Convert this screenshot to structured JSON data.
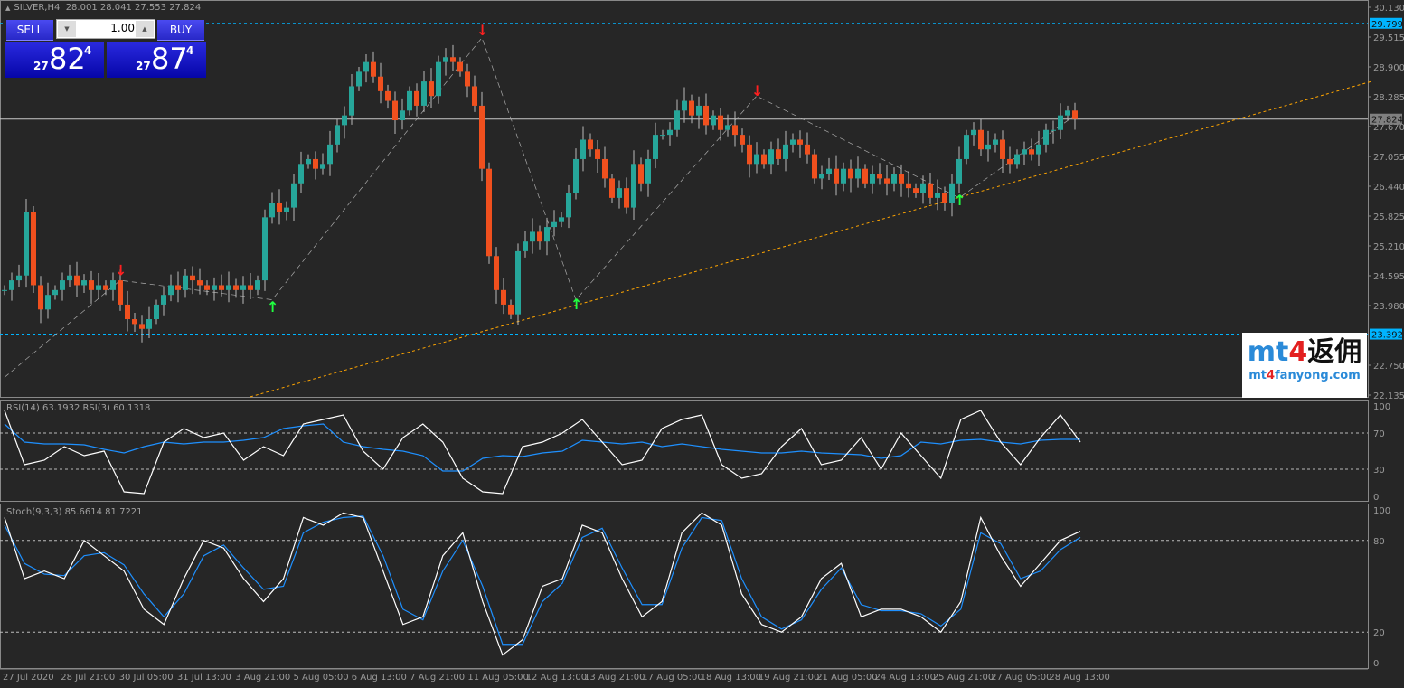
{
  "header": {
    "symbol": "SILVER,H4",
    "ohlc": "28.001 28.041 27.553 27.824"
  },
  "trade_panel": {
    "sell_label": "SELL",
    "buy_label": "BUY",
    "lot": "1.00",
    "sell_prefix": "27",
    "sell_big": "82",
    "sell_sup": "4",
    "buy_prefix": "27",
    "buy_big": "87",
    "buy_sup": "4"
  },
  "price_axis": {
    "ticks": [
      "30.130",
      "29.515",
      "28.900",
      "28.285",
      "27.670",
      "27.055",
      "26.440",
      "25.825",
      "25.210",
      "24.595",
      "23.980",
      "22.750",
      "22.135"
    ],
    "tick_values": [
      30.13,
      29.515,
      28.9,
      28.285,
      27.67,
      27.055,
      26.44,
      25.825,
      25.21,
      24.595,
      23.98,
      22.75,
      22.135
    ],
    "range": [
      22.135,
      30.13
    ],
    "labels": [
      {
        "text": "29.799",
        "value": 29.799,
        "color": "#00b4ff"
      },
      {
        "text": "27.824",
        "value": 27.824,
        "color": "#808080"
      },
      {
        "text": "23.392",
        "value": 23.392,
        "color": "#00b4ff"
      }
    ]
  },
  "time_axis": [
    "27 Jul 2020",
    "28 Jul 21:00",
    "30 Jul 05:00",
    "31 Jul 13:00",
    "3 Aug 21:00",
    "5 Aug 05:00",
    "6 Aug 13:00",
    "7 Aug 21:00",
    "11 Aug 05:00",
    "12 Aug 13:00",
    "13 Aug 21:00",
    "17 Aug 05:00",
    "18 Aug 13:00",
    "19 Aug 21:00",
    "21 Aug 05:00",
    "24 Aug 13:00",
    "25 Aug 21:00",
    "27 Aug 05:00",
    "28 Aug 13:00"
  ],
  "colors": {
    "bull": "#26a69a",
    "bear": "#f0501e",
    "bg": "#262626",
    "grid": "#808080",
    "hline": "#00b4ff",
    "trend": "#ffa500"
  },
  "chart_data": {
    "type": "candlestick",
    "closes": [
      24.3,
      24.5,
      24.6,
      25.9,
      24.4,
      23.9,
      24.2,
      24.3,
      24.5,
      24.6,
      24.4,
      24.5,
      24.3,
      24.4,
      24.3,
      24.5,
      24.0,
      23.7,
      23.6,
      23.5,
      23.7,
      24.0,
      24.2,
      24.4,
      24.3,
      24.6,
      24.5,
      24.4,
      24.3,
      24.4,
      24.3,
      24.4,
      24.3,
      24.4,
      24.3,
      24.5,
      25.8,
      26.1,
      25.9,
      26.0,
      26.5,
      26.9,
      27.0,
      26.8,
      26.9,
      27.3,
      27.7,
      27.9,
      28.5,
      28.8,
      29.0,
      28.7,
      28.4,
      28.2,
      27.8,
      28.0,
      28.4,
      28.1,
      28.6,
      28.3,
      29.0,
      29.1,
      29.0,
      28.8,
      28.5,
      28.1,
      26.8,
      25.0,
      24.3,
      24.0,
      23.8,
      25.1,
      25.3,
      25.5,
      25.3,
      25.6,
      25.7,
      25.8,
      26.3,
      27.0,
      27.4,
      27.2,
      27.0,
      26.6,
      26.2,
      26.4,
      26.0,
      26.9,
      26.5,
      27.0,
      27.5,
      27.5,
      27.6,
      28.0,
      28.2,
      27.9,
      28.1,
      27.7,
      27.9,
      27.6,
      27.7,
      27.5,
      27.3,
      26.9,
      27.1,
      26.9,
      27.2,
      27.0,
      27.3,
      27.4,
      27.3,
      27.1,
      26.6,
      26.7,
      26.8,
      26.5,
      26.8,
      26.6,
      26.8,
      26.5,
      26.7,
      26.6,
      26.5,
      26.7,
      26.5,
      26.4,
      26.3,
      26.5,
      26.2,
      26.3,
      26.1,
      26.5,
      27.0,
      27.5,
      27.6,
      27.2,
      27.3,
      27.4,
      27.0,
      26.9,
      27.1,
      27.2,
      27.1,
      27.3,
      27.6,
      27.6,
      27.9,
      28.0,
      27.824
    ],
    "signals": [
      {
        "type": "sell",
        "candle": 16,
        "price": 24.6
      },
      {
        "type": "buy",
        "candle": 37,
        "price": 24.0
      },
      {
        "type": "sell",
        "candle": 66,
        "price": 29.55
      },
      {
        "type": "buy",
        "candle": 79,
        "price": 24.05
      },
      {
        "type": "sell",
        "candle": 104,
        "price": 28.3
      },
      {
        "type": "buy",
        "candle": 132,
        "price": 26.2
      }
    ],
    "zigzag": [
      [
        0,
        22.5
      ],
      [
        16,
        24.5
      ],
      [
        37,
        24.1
      ],
      [
        66,
        29.5
      ],
      [
        79,
        24.1
      ],
      [
        104,
        28.3
      ],
      [
        132,
        26.2
      ],
      [
        148,
        27.9
      ]
    ],
    "trendline": {
      "from": [
        34,
        22.1
      ],
      "to": [
        189,
        28.6
      ]
    },
    "rsi": {
      "label": "RSI(14) 63.1932  RSI(3) 60.1318",
      "levels": [
        70,
        30
      ],
      "ticks": [
        "100",
        "70",
        "30",
        "0"
      ],
      "rsi3": [
        95,
        35,
        40,
        55,
        45,
        50,
        5,
        3,
        60,
        75,
        65,
        70,
        40,
        55,
        45,
        80,
        85,
        90,
        50,
        30,
        65,
        80,
        60,
        20,
        5,
        3,
        55,
        60,
        70,
        85,
        60,
        35,
        40,
        75,
        85,
        90,
        35,
        20,
        25,
        55,
        75,
        35,
        40,
        65,
        30,
        70,
        45,
        20,
        85,
        95,
        60,
        35,
        65,
        90,
        60
      ],
      "rsi14": [
        80,
        60,
        58,
        58,
        57,
        52,
        48,
        55,
        60,
        58,
        60,
        60,
        62,
        65,
        75,
        78,
        80,
        60,
        55,
        52,
        50,
        45,
        28,
        28,
        42,
        45,
        44,
        48,
        50,
        62,
        60,
        58,
        60,
        55,
        58,
        55,
        52,
        50,
        48,
        48,
        50,
        48,
        47,
        46,
        42,
        45,
        60,
        58,
        62,
        63,
        60,
        58,
        62,
        63,
        63
      ]
    },
    "stoch": {
      "label": "Stoch(9,3,3) 85.6614 81.7221",
      "levels": [
        80,
        20
      ],
      "ticks": [
        "100",
        "80",
        "20",
        "0"
      ],
      "k": [
        95,
        55,
        60,
        55,
        80,
        70,
        60,
        35,
        25,
        55,
        80,
        75,
        55,
        40,
        55,
        95,
        90,
        98,
        95,
        60,
        25,
        30,
        70,
        85,
        40,
        5,
        15,
        50,
        55,
        90,
        85,
        55,
        30,
        40,
        85,
        98,
        90,
        45,
        25,
        20,
        30,
        55,
        65,
        30,
        35,
        35,
        30,
        20,
        40,
        95,
        70,
        50,
        65,
        80,
        86
      ],
      "d": [
        90,
        65,
        58,
        57,
        70,
        72,
        64,
        45,
        30,
        45,
        70,
        77,
        62,
        48,
        50,
        85,
        92,
        95,
        96,
        70,
        35,
        28,
        60,
        80,
        50,
        12,
        12,
        40,
        52,
        82,
        88,
        62,
        38,
        38,
        75,
        95,
        93,
        55,
        30,
        22,
        28,
        48,
        62,
        38,
        34,
        34,
        32,
        24,
        35,
        85,
        78,
        55,
        60,
        74,
        82
      ]
    }
  }
}
